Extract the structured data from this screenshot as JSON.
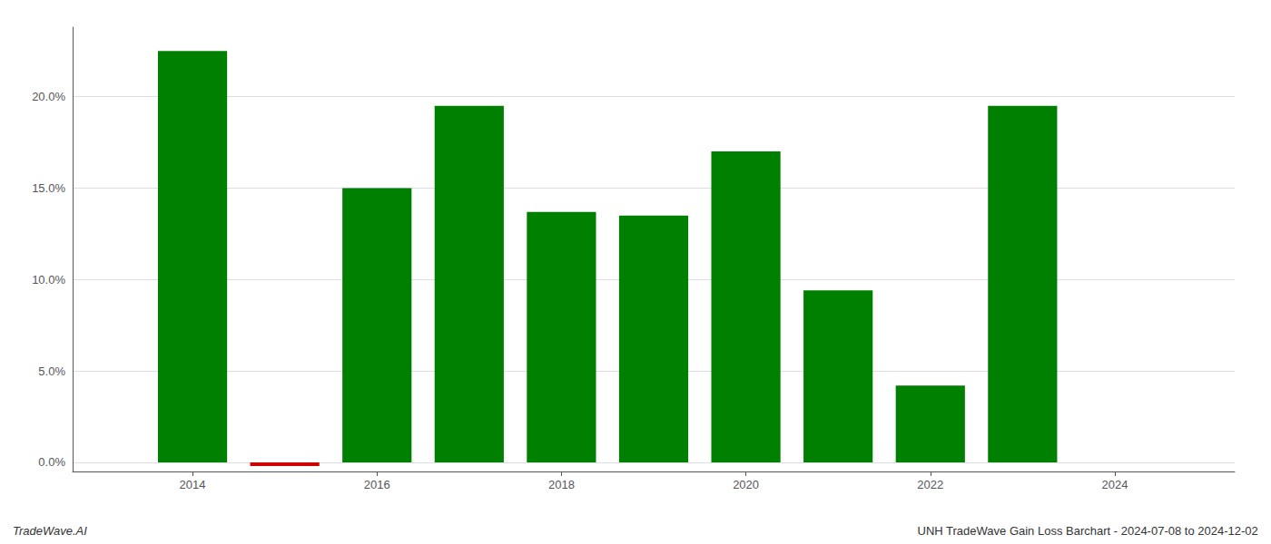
{
  "chart_data": {
    "type": "bar",
    "x": [
      2014,
      2015,
      2016,
      2017,
      2018,
      2019,
      2020,
      2021,
      2022,
      2023
    ],
    "values": [
      0.225,
      -0.002,
      0.15,
      0.195,
      0.137,
      0.135,
      0.17,
      0.094,
      0.042,
      0.195
    ],
    "colors": [
      "#008000",
      "#cc0000",
      "#008000",
      "#008000",
      "#008000",
      "#008000",
      "#008000",
      "#008000",
      "#008000",
      "#008000"
    ],
    "xlim": [
      2012.7,
      2025.3
    ],
    "xticks": [
      2014,
      2016,
      2018,
      2020,
      2022,
      2024
    ],
    "ylim": [
      -0.005,
      0.238
    ],
    "yticks": [
      {
        "value": 0,
        "label": "0.0%"
      },
      {
        "value": 0.05,
        "label": "5.0%"
      },
      {
        "value": 0.1,
        "label": "10.0%"
      },
      {
        "value": 0.15,
        "label": "15.0%"
      },
      {
        "value": 0.2,
        "label": "20.0%"
      }
    ],
    "grid": true,
    "annotations": [
      "TradeWave.AI",
      "UNH TradeWave Gain Loss Barchart - 2024-07-08 to 2024-12-02"
    ]
  }
}
